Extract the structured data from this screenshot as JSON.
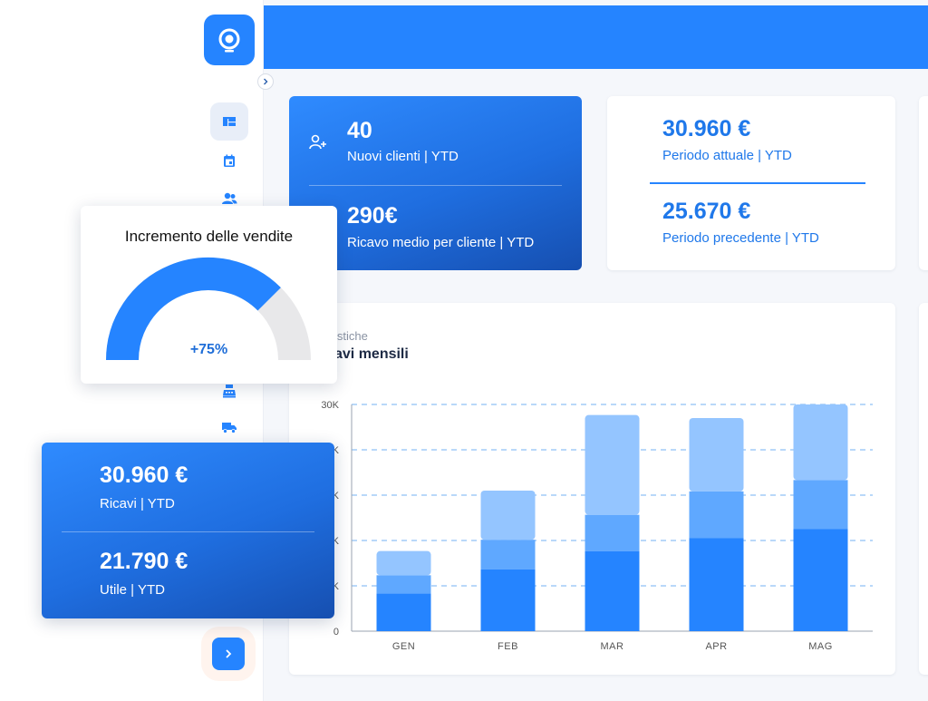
{
  "kpi_clients": {
    "new_clients_value": "40",
    "new_clients_label": "Nuovi clienti | YTD",
    "avg_revenue_value": "290€",
    "avg_revenue_label": "Ricavo medio per cliente | YTD"
  },
  "kpi_period": {
    "current_value": "30.960 €",
    "current_label": "Periodo attuale | YTD",
    "previous_value": "25.670 €",
    "previous_label": "Periodo precedente | YTD"
  },
  "chart_panel": {
    "overline": "istiche",
    "title": "avi mensili"
  },
  "gauge_card": {
    "title": "Incremento delle vendite",
    "value_label": "+75%",
    "value": 0.75
  },
  "revenue_card": {
    "revenue_value": "30.960 €",
    "revenue_label": "Ricavi | YTD",
    "profit_value": "21.790 €",
    "profit_label": "Utile | YTD"
  },
  "sidebar": {
    "icons": [
      "dashboard-icon",
      "calendar-icon",
      "users-icon",
      "cash-register-icon",
      "truck-icon"
    ]
  },
  "colors": {
    "brand": "#2584ff",
    "bar_bottom": "#2584ff",
    "bar_middle": "#5fa8ff",
    "bar_top": "#94c5ff"
  },
  "chart_data": {
    "type": "bar",
    "stacked": true,
    "categories": [
      "GEN",
      "FEB",
      "MAR",
      "APR",
      "MAG"
    ],
    "series": [
      {
        "values": [
          5000,
          8200,
          10600,
          12300,
          13500
        ]
      },
      {
        "values": [
          2400,
          3900,
          4800,
          6200,
          6500
        ]
      },
      {
        "values": [
          3200,
          6500,
          13200,
          9700,
          10000
        ]
      }
    ],
    "y_ticks": [
      "0",
      "K",
      "K",
      "K",
      "K",
      "30K"
    ],
    "ylim": [
      0,
      30000
    ],
    "grid": true
  }
}
